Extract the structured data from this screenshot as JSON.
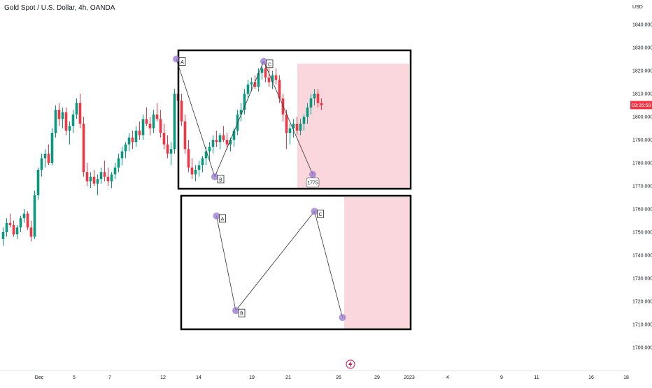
{
  "chart_data": {
    "type": "candlestick",
    "title": "Gold Spot / U.S. Dollar, 4h, OANDA",
    "currency_label": "USD",
    "price_badge": {
      "value": "1805.05",
      "time": "03:26:59",
      "price": 1805.05,
      "color": "#f23645"
    },
    "y_ticks": [
      1700,
      1710,
      1720,
      1730,
      1740,
      1750,
      1760,
      1770,
      1780,
      1790,
      1800,
      1810,
      1820,
      1830,
      1840
    ],
    "y_tick_labels": [
      "1700.000",
      "1710.000",
      "1720.000",
      "1730.000",
      "1740.000",
      "1750.000",
      "1760.000",
      "1770.000",
      "1780.000",
      "1790.000",
      "1800.000",
      "1810.000",
      "1820.000",
      "1830.000",
      "1840.000"
    ],
    "ylim": [
      1694,
      1850
    ],
    "x_ticks": [
      "Dec",
      "5",
      "7",
      "12",
      "14",
      "19",
      "21",
      "26",
      "29",
      "2023",
      "4",
      "9",
      "11",
      "16",
      "18"
    ],
    "up_color": "#089981",
    "down_color": "#f23645",
    "candles": [
      [
        1747,
        1752,
        1744,
        1750
      ],
      [
        1750,
        1756,
        1748,
        1754
      ],
      [
        1754,
        1758,
        1752,
        1753
      ],
      [
        1753,
        1755,
        1748,
        1749
      ],
      [
        1749,
        1753,
        1747,
        1752
      ],
      [
        1752,
        1757,
        1750,
        1756
      ],
      [
        1756,
        1760,
        1754,
        1758
      ],
      [
        1758,
        1759,
        1751,
        1752
      ],
      [
        1752,
        1755,
        1746,
        1748
      ],
      [
        1748,
        1768,
        1747,
        1766
      ],
      [
        1766,
        1778,
        1764,
        1777
      ],
      [
        1777,
        1784,
        1774,
        1782
      ],
      [
        1782,
        1786,
        1778,
        1784
      ],
      [
        1784,
        1788,
        1779,
        1780
      ],
      [
        1780,
        1795,
        1779,
        1793
      ],
      [
        1793,
        1805,
        1791,
        1803
      ],
      [
        1803,
        1806,
        1796,
        1799
      ],
      [
        1799,
        1804,
        1795,
        1802
      ],
      [
        1802,
        1804,
        1792,
        1794
      ],
      [
        1794,
        1798,
        1788,
        1796
      ],
      [
        1796,
        1803,
        1793,
        1801
      ],
      [
        1801,
        1808,
        1799,
        1806
      ],
      [
        1806,
        1810,
        1795,
        1797
      ],
      [
        1797,
        1800,
        1774,
        1776
      ],
      [
        1776,
        1780,
        1770,
        1772
      ],
      [
        1772,
        1776,
        1769,
        1774
      ],
      [
        1774,
        1777,
        1770,
        1771
      ],
      [
        1771,
        1775,
        1766,
        1773
      ],
      [
        1773,
        1778,
        1771,
        1776
      ],
      [
        1776,
        1781,
        1772,
        1774
      ],
      [
        1774,
        1778,
        1770,
        1772
      ],
      [
        1772,
        1776,
        1769,
        1775
      ],
      [
        1775,
        1780,
        1773,
        1778
      ],
      [
        1778,
        1784,
        1776,
        1782
      ],
      [
        1782,
        1787,
        1779,
        1785
      ],
      [
        1785,
        1789,
        1782,
        1788
      ],
      [
        1788,
        1793,
        1785,
        1791
      ],
      [
        1791,
        1794,
        1786,
        1789
      ],
      [
        1789,
        1796,
        1787,
        1794
      ],
      [
        1794,
        1798,
        1790,
        1792
      ],
      [
        1792,
        1801,
        1790,
        1799
      ],
      [
        1799,
        1804,
        1796,
        1797
      ],
      [
        1797,
        1800,
        1792,
        1795
      ],
      [
        1795,
        1803,
        1793,
        1801
      ],
      [
        1801,
        1806,
        1798,
        1799
      ],
      [
        1799,
        1803,
        1791,
        1793
      ],
      [
        1793,
        1797,
        1786,
        1788
      ],
      [
        1788,
        1792,
        1782,
        1784
      ],
      [
        1784,
        1789,
        1779,
        1786
      ],
      [
        1786,
        1812,
        1784,
        1810
      ],
      [
        1810,
        1815,
        1805,
        1807
      ],
      [
        1807,
        1810,
        1796,
        1798
      ],
      [
        1798,
        1801,
        1784,
        1786
      ],
      [
        1786,
        1790,
        1776,
        1778
      ],
      [
        1778,
        1782,
        1773,
        1775
      ],
      [
        1775,
        1779,
        1772,
        1777
      ],
      [
        1777,
        1781,
        1774,
        1779
      ],
      [
        1779,
        1783,
        1776,
        1782
      ],
      [
        1782,
        1787,
        1779,
        1785
      ],
      [
        1785,
        1789,
        1781,
        1787
      ],
      [
        1787,
        1792,
        1784,
        1790
      ],
      [
        1790,
        1794,
        1787,
        1789
      ],
      [
        1789,
        1793,
        1786,
        1792
      ],
      [
        1792,
        1796,
        1789,
        1790
      ],
      [
        1790,
        1793,
        1786,
        1788
      ],
      [
        1788,
        1791,
        1785,
        1790
      ],
      [
        1790,
        1795,
        1787,
        1794
      ],
      [
        1794,
        1803,
        1792,
        1801
      ],
      [
        1801,
        1806,
        1798,
        1803
      ],
      [
        1803,
        1812,
        1801,
        1810
      ],
      [
        1810,
        1816,
        1808,
        1814
      ],
      [
        1814,
        1817,
        1811,
        1815
      ],
      [
        1815,
        1818,
        1812,
        1813
      ],
      [
        1813,
        1821,
        1811,
        1819
      ],
      [
        1819,
        1824,
        1816,
        1821
      ],
      [
        1821,
        1823,
        1815,
        1817
      ],
      [
        1817,
        1821,
        1813,
        1815
      ],
      [
        1815,
        1820,
        1812,
        1818
      ],
      [
        1818,
        1821,
        1814,
        1816
      ],
      [
        1816,
        1818,
        1806,
        1808
      ],
      [
        1808,
        1810,
        1798,
        1801
      ],
      [
        1801,
        1803,
        1786,
        1793
      ],
      [
        1793,
        1797,
        1788,
        1795
      ],
      [
        1795,
        1799,
        1791,
        1797
      ],
      [
        1797,
        1800,
        1792,
        1794
      ],
      [
        1794,
        1799,
        1792,
        1797
      ],
      [
        1797,
        1801,
        1794,
        1800
      ],
      [
        1800,
        1806,
        1797,
        1804
      ],
      [
        1804,
        1810,
        1801,
        1808
      ],
      [
        1808,
        1812,
        1805,
        1810
      ],
      [
        1810,
        1812,
        1804,
        1806
      ],
      [
        1806,
        1808,
        1803,
        1805
      ]
    ],
    "pattern_top": {
      "points": [
        {
          "label": "A",
          "x": 49.5,
          "price": 1825
        },
        {
          "label": "B",
          "x": 60.5,
          "price": 1774
        },
        {
          "label": "C",
          "x": 74.5,
          "price": 1824
        },
        {
          "label": "",
          "x": 88.5,
          "price": 1775
        }
      ],
      "target_label": "1775"
    },
    "pattern_bottom": {
      "points": [
        {
          "label": "A",
          "x": 61,
          "price": 1757
        },
        {
          "label": "B",
          "x": 66.5,
          "price": 1716
        },
        {
          "label": "C",
          "x": 89,
          "price": 1759
        },
        {
          "label": "",
          "x": 97,
          "price": 1713
        }
      ]
    },
    "zone_color": "#f9d7dc",
    "marker_color": "#9575cd"
  }
}
